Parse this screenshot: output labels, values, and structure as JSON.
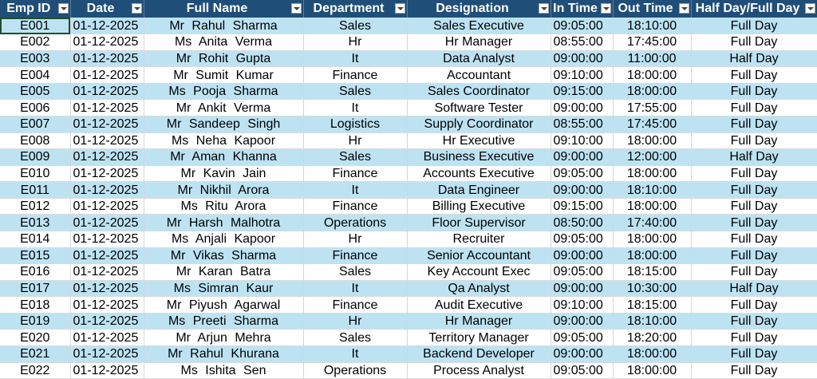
{
  "table": {
    "headers": [
      "Emp ID",
      "Date",
      "Full Name",
      "Department",
      "Designation",
      "In Time",
      "Out Time",
      "Half Day/Full Day"
    ],
    "rows": [
      [
        "E001",
        "01-12-2025",
        "Mr Rahul Sharma",
        "Sales",
        "Sales Executive",
        "09:05:00",
        "18:10:00",
        "Full Day"
      ],
      [
        "E002",
        "01-12-2025",
        "Ms Anita Verma",
        "Hr",
        "Hr Manager",
        "08:55:00",
        "17:45:00",
        "Full Day"
      ],
      [
        "E003",
        "01-12-2025",
        "Mr Rohit Gupta",
        "It",
        "Data Analyst",
        "09:00:00",
        "11:00:00",
        "Half Day"
      ],
      [
        "E004",
        "01-12-2025",
        "Mr Sumit Kumar",
        "Finance",
        "Accountant",
        "09:10:00",
        "18:00:00",
        "Full Day"
      ],
      [
        "E005",
        "01-12-2025",
        "Ms Pooja Sharma",
        "Sales",
        "Sales Coordinator",
        "09:15:00",
        "18:00:00",
        "Full Day"
      ],
      [
        "E006",
        "01-12-2025",
        "Mr Ankit Verma",
        "It",
        "Software Tester",
        "09:00:00",
        "17:55:00",
        "Full Day"
      ],
      [
        "E007",
        "01-12-2025",
        "Mr Sandeep Singh",
        "Logistics",
        "Supply Coordinator",
        "08:55:00",
        "17:45:00",
        "Full Day"
      ],
      [
        "E008",
        "01-12-2025",
        "Ms Neha Kapoor",
        "Hr",
        "Hr Executive",
        "09:10:00",
        "18:00:00",
        "Full Day"
      ],
      [
        "E009",
        "01-12-2025",
        "Mr Aman Khanna",
        "Sales",
        "Business Executive",
        "09:00:00",
        "12:00:00",
        "Half Day"
      ],
      [
        "E010",
        "01-12-2025",
        "Mr Kavin Jain",
        "Finance",
        "Accounts Executive",
        "09:05:00",
        "18:00:00",
        "Full Day"
      ],
      [
        "E011",
        "01-12-2025",
        "Mr Nikhil Arora",
        "It",
        "Data Engineer",
        "09:00:00",
        "18:10:00",
        "Full Day"
      ],
      [
        "E012",
        "01-12-2025",
        "Ms Ritu Arora",
        "Finance",
        "Billing Executive",
        "09:15:00",
        "18:00:00",
        "Full Day"
      ],
      [
        "E013",
        "01-12-2025",
        "Mr Harsh Malhotra",
        "Operations",
        "Floor Supervisor",
        "08:50:00",
        "17:40:00",
        "Full Day"
      ],
      [
        "E014",
        "01-12-2025",
        "Ms Anjali Kapoor",
        "Hr",
        "Recruiter",
        "09:05:00",
        "18:00:00",
        "Full Day"
      ],
      [
        "E015",
        "01-12-2025",
        "Mr Vikas Sharma",
        "Finance",
        "Senior Accountant",
        "09:00:00",
        "18:00:00",
        "Full Day"
      ],
      [
        "E016",
        "01-12-2025",
        "Mr Karan Batra",
        "Sales",
        "Key Account Exec",
        "09:05:00",
        "18:15:00",
        "Full Day"
      ],
      [
        "E017",
        "01-12-2025",
        "Ms Simran Kaur",
        "It",
        "Qa Analyst",
        "09:00:00",
        "10:30:00",
        "Half Day"
      ],
      [
        "E018",
        "01-12-2025",
        "Mr Piyush Agarwal",
        "Finance",
        "Audit Executive",
        "09:10:00",
        "18:15:00",
        "Full Day"
      ],
      [
        "E019",
        "01-12-2025",
        "Ms Preeti Sharma",
        "Hr",
        "Hr Manager",
        "09:00:00",
        "18:10:00",
        "Full Day"
      ],
      [
        "E020",
        "01-12-2025",
        "Mr Arjun Mehra",
        "Sales",
        "Territory Manager",
        "09:05:00",
        "18:20:00",
        "Full Day"
      ],
      [
        "E021",
        "01-12-2025",
        "Mr Rahul Khurana",
        "It",
        "Backend Developer",
        "09:00:00",
        "18:00:00",
        "Full Day"
      ],
      [
        "E022",
        "01-12-2025",
        "Ms Ishita Sen",
        "Operations",
        "Process Analyst",
        "09:05:00",
        "18:00:00",
        "Full Day"
      ]
    ]
  }
}
